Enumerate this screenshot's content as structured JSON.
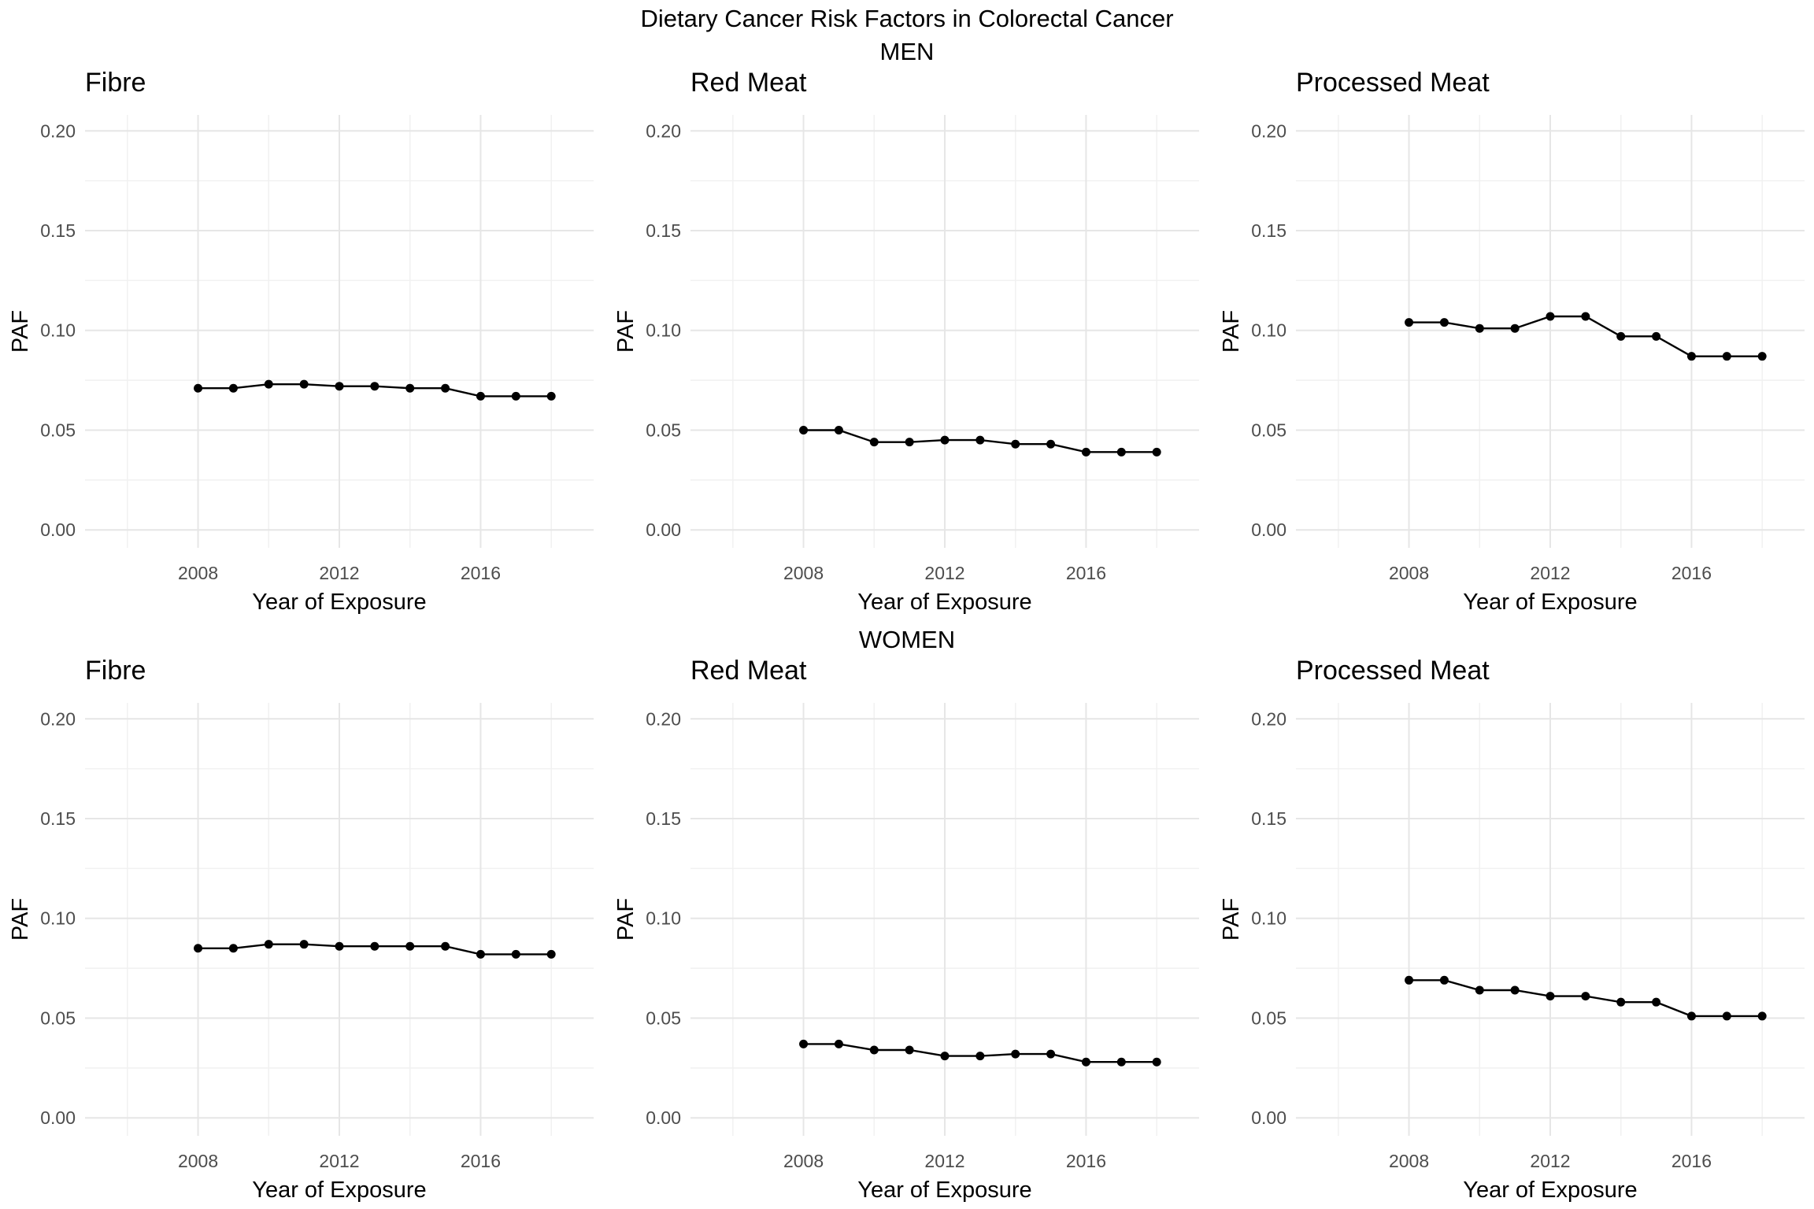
{
  "figure": {
    "title": "Dietary Cancer Risk Factors in Colorectal Cancer",
    "group_labels": [
      "MEN",
      "WOMEN"
    ]
  },
  "chart_data": [
    {
      "type": "line",
      "group": "MEN",
      "title": "Fibre",
      "xlabel": "Year of Exposure",
      "ylabel": "PAF",
      "x": [
        2008,
        2009,
        2010,
        2011,
        2012,
        2013,
        2014,
        2015,
        2016,
        2017,
        2018
      ],
      "values": [
        0.071,
        0.071,
        0.073,
        0.073,
        0.072,
        0.072,
        0.071,
        0.071,
        0.067,
        0.067,
        0.067
      ],
      "xlim": [
        2004.8,
        2019.2
      ],
      "ylim": [
        -0.009,
        0.208
      ],
      "x_ticks": [
        2008,
        2012,
        2016
      ],
      "y_ticks": [
        0.0,
        0.05,
        0.1,
        0.15,
        0.2
      ],
      "y_tick_labels": [
        "0.00",
        "0.05",
        "0.10",
        "0.15",
        "0.20"
      ],
      "grid": true
    },
    {
      "type": "line",
      "group": "MEN",
      "title": "Red Meat",
      "xlabel": "Year of Exposure",
      "ylabel": "PAF",
      "x": [
        2008,
        2009,
        2010,
        2011,
        2012,
        2013,
        2014,
        2015,
        2016,
        2017,
        2018
      ],
      "values": [
        0.05,
        0.05,
        0.044,
        0.044,
        0.045,
        0.045,
        0.043,
        0.043,
        0.039,
        0.039,
        0.039
      ],
      "xlim": [
        2004.8,
        2019.2
      ],
      "ylim": [
        -0.009,
        0.208
      ],
      "x_ticks": [
        2008,
        2012,
        2016
      ],
      "y_ticks": [
        0.0,
        0.05,
        0.1,
        0.15,
        0.2
      ],
      "y_tick_labels": [
        "0.00",
        "0.05",
        "0.10",
        "0.15",
        "0.20"
      ],
      "grid": true
    },
    {
      "type": "line",
      "group": "MEN",
      "title": "Processed Meat",
      "xlabel": "Year of Exposure",
      "ylabel": "PAF",
      "x": [
        2008,
        2009,
        2010,
        2011,
        2012,
        2013,
        2014,
        2015,
        2016,
        2017,
        2018
      ],
      "values": [
        0.104,
        0.104,
        0.101,
        0.101,
        0.107,
        0.107,
        0.097,
        0.097,
        0.087,
        0.087,
        0.087
      ],
      "xlim": [
        2004.8,
        2019.2
      ],
      "ylim": [
        -0.009,
        0.208
      ],
      "x_ticks": [
        2008,
        2012,
        2016
      ],
      "y_ticks": [
        0.0,
        0.05,
        0.1,
        0.15,
        0.2
      ],
      "y_tick_labels": [
        "0.00",
        "0.05",
        "0.10",
        "0.15",
        "0.20"
      ],
      "grid": true
    },
    {
      "type": "line",
      "group": "WOMEN",
      "title": "Fibre",
      "xlabel": "Year of Exposure",
      "ylabel": "PAF",
      "x": [
        2008,
        2009,
        2010,
        2011,
        2012,
        2013,
        2014,
        2015,
        2016,
        2017,
        2018
      ],
      "values": [
        0.085,
        0.085,
        0.087,
        0.087,
        0.086,
        0.086,
        0.086,
        0.086,
        0.082,
        0.082,
        0.082
      ],
      "xlim": [
        2004.8,
        2019.2
      ],
      "ylim": [
        -0.009,
        0.208
      ],
      "x_ticks": [
        2008,
        2012,
        2016
      ],
      "y_ticks": [
        0.0,
        0.05,
        0.1,
        0.15,
        0.2
      ],
      "y_tick_labels": [
        "0.00",
        "0.05",
        "0.10",
        "0.15",
        "0.20"
      ],
      "grid": true
    },
    {
      "type": "line",
      "group": "WOMEN",
      "title": "Red Meat",
      "xlabel": "Year of Exposure",
      "ylabel": "PAF",
      "x": [
        2008,
        2009,
        2010,
        2011,
        2012,
        2013,
        2014,
        2015,
        2016,
        2017,
        2018
      ],
      "values": [
        0.037,
        0.037,
        0.034,
        0.034,
        0.031,
        0.031,
        0.032,
        0.032,
        0.028,
        0.028,
        0.028
      ],
      "xlim": [
        2004.8,
        2019.2
      ],
      "ylim": [
        -0.009,
        0.208
      ],
      "x_ticks": [
        2008,
        2012,
        2016
      ],
      "y_ticks": [
        0.0,
        0.05,
        0.1,
        0.15,
        0.2
      ],
      "y_tick_labels": [
        "0.00",
        "0.05",
        "0.10",
        "0.15",
        "0.20"
      ],
      "grid": true
    },
    {
      "type": "line",
      "group": "WOMEN",
      "title": "Processed Meat",
      "xlabel": "Year of Exposure",
      "ylabel": "PAF",
      "x": [
        2008,
        2009,
        2010,
        2011,
        2012,
        2013,
        2014,
        2015,
        2016,
        2017,
        2018
      ],
      "values": [
        0.069,
        0.069,
        0.064,
        0.064,
        0.061,
        0.061,
        0.058,
        0.058,
        0.051,
        0.051,
        0.051
      ],
      "xlim": [
        2004.8,
        2019.2
      ],
      "ylim": [
        -0.009,
        0.208
      ],
      "x_ticks": [
        2008,
        2012,
        2016
      ],
      "y_ticks": [
        0.0,
        0.05,
        0.1,
        0.15,
        0.2
      ],
      "y_tick_labels": [
        "0.00",
        "0.05",
        "0.10",
        "0.15",
        "0.20"
      ],
      "grid": true
    }
  ]
}
